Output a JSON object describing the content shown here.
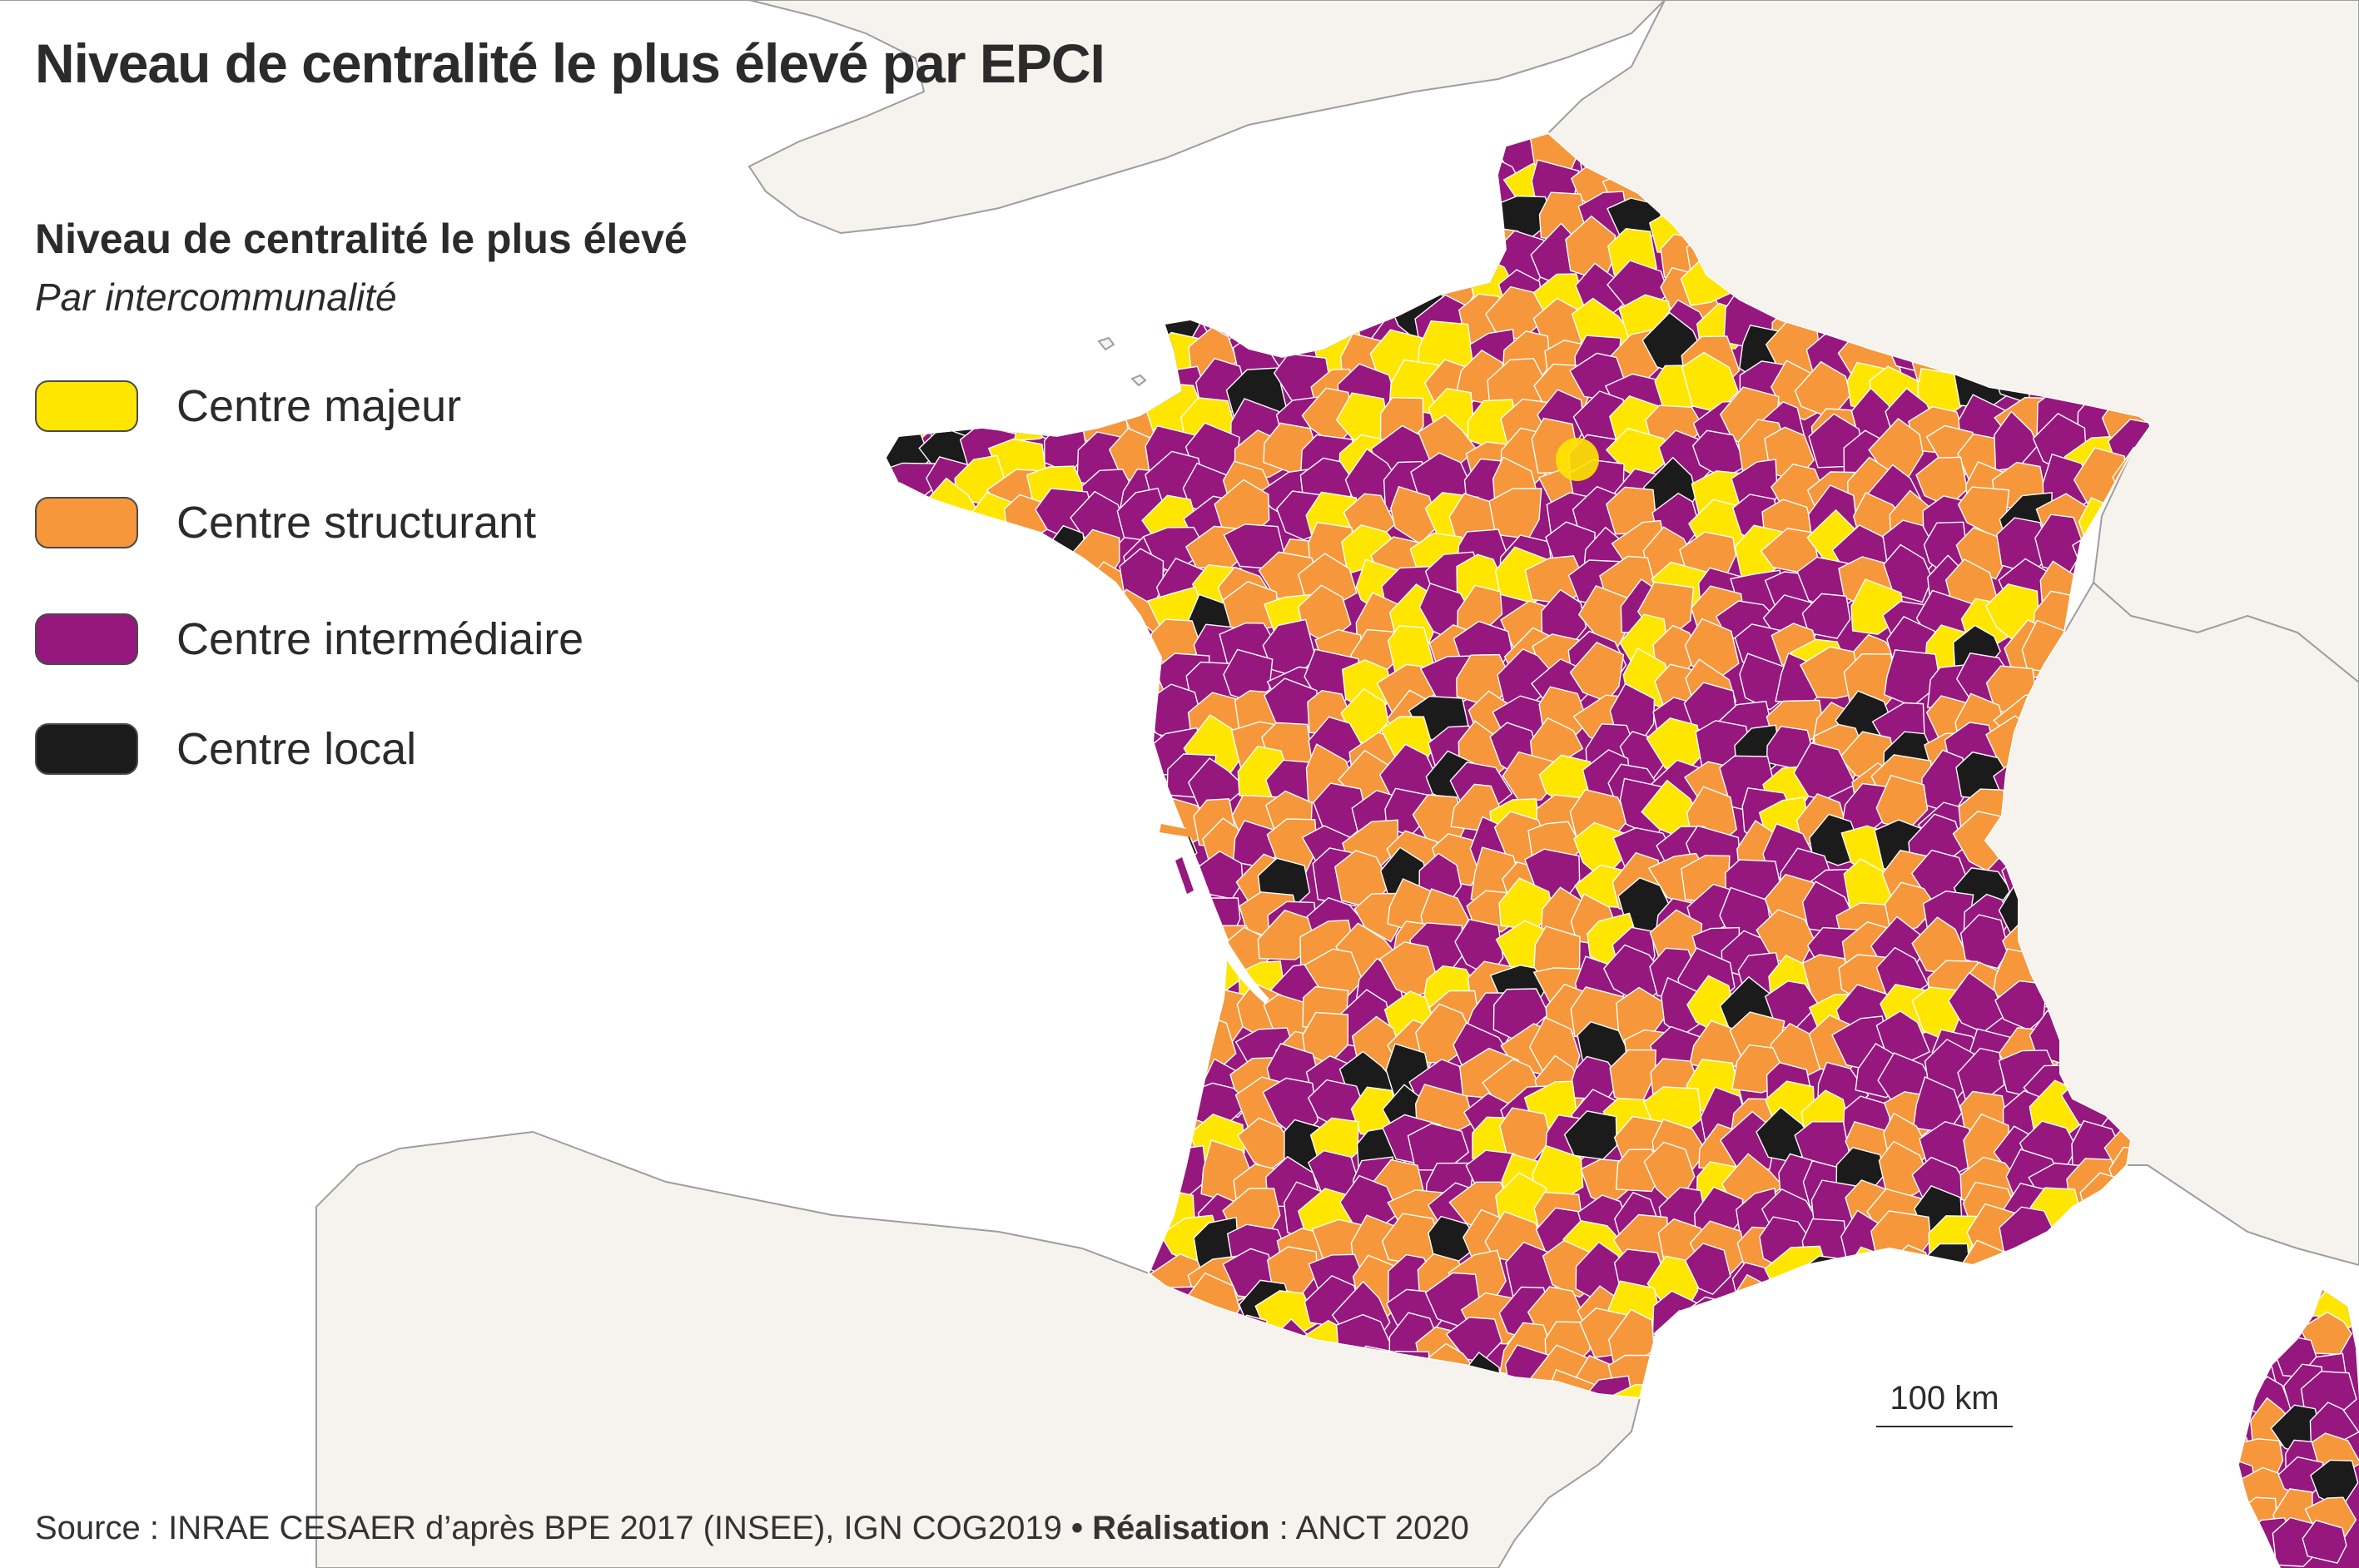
{
  "title": "Niveau de centralité le plus élevé par EPCI",
  "legend": {
    "title": "Niveau de centralité le plus élevé",
    "subtitle": "Par intercommunalité",
    "items": [
      {
        "label": "Centre majeur",
        "color": "#ffe600"
      },
      {
        "label": "Centre structurant",
        "color": "#f5973a"
      },
      {
        "label": "Centre intermédiaire",
        "color": "#96177e"
      },
      {
        "label": "Centre local",
        "color": "#1b1b1b"
      }
    ]
  },
  "scale": {
    "label": "100 km"
  },
  "footer": {
    "source_label": "Source",
    "source_text": " : INRAE CESAER d’après BPE 2017 (INSEE), IGN COG2019",
    "separator": " • ",
    "credit_label": "Réalisation",
    "credit_text": " : ANCT 2020"
  },
  "map": {
    "land_color": "#f6f3ee",
    "sea_color": "#ffffff",
    "border_color": "#9e9e9e"
  }
}
